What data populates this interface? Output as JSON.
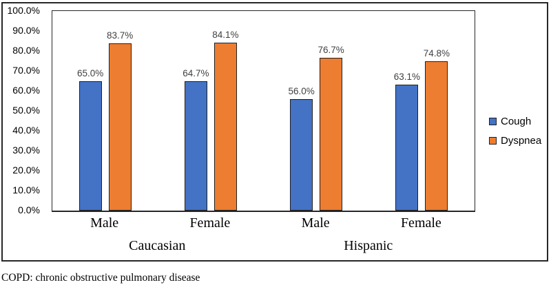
{
  "footnote": "COPD: chronic obstructive pulmonary disease",
  "chart_data": {
    "type": "bar",
    "title": "",
    "groups": [
      {
        "label": "Caucasian",
        "categories": [
          "Male",
          "Female"
        ]
      },
      {
        "label": "Hispanic",
        "categories": [
          "Male",
          "Female"
        ]
      }
    ],
    "categories": [
      "Male",
      "Female",
      "Male",
      "Female"
    ],
    "series": [
      {
        "name": "Cough",
        "color": "#4472C4",
        "values": [
          65.0,
          64.7,
          56.0,
          63.1
        ]
      },
      {
        "name": "Dyspnea",
        "color": "#ED7D31",
        "values": [
          83.7,
          84.1,
          76.7,
          74.8
        ]
      }
    ],
    "data_labels": [
      [
        "65.0%",
        "64.7%",
        "56.0%",
        "63.1%"
      ],
      [
        "83.7%",
        "84.1%",
        "76.7%",
        "74.8%"
      ]
    ],
    "y_axis": {
      "min": 0,
      "max": 100,
      "step": 10,
      "tick_labels": [
        "100.0%",
        "90.0%",
        "80.0%",
        "70.0%",
        "60.0%",
        "50.0%",
        "40.0%",
        "30.0%",
        "20.0%",
        "10.0%",
        "0.0%"
      ]
    },
    "grid": false,
    "legend_position": "right",
    "colors": {
      "bar_border": "#1F1F1F",
      "data_label": "#404040",
      "axis_text": "#000000",
      "frame_border": "#262626"
    }
  }
}
